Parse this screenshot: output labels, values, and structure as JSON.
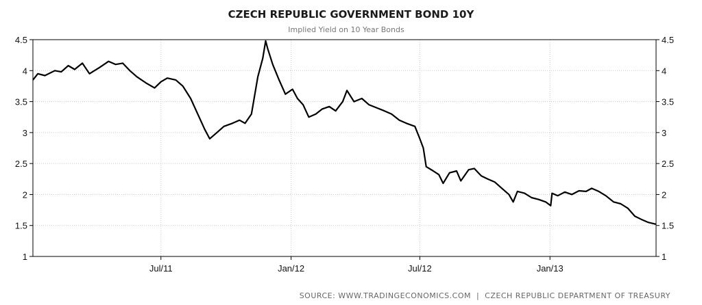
{
  "chart_data": {
    "type": "line",
    "title": "CZECH REPUBLIC GOVERNMENT BOND 10Y",
    "subtitle": "Implied Yield on 10 Year Bonds",
    "source": "SOURCE: WWW.TRADINGECONOMICS.COM  |  CZECH REPUBLIC DEPARTMENT OF TREASURY",
    "ylim": [
      1,
      4.5
    ],
    "y_ticks": [
      1,
      1.5,
      2,
      2.5,
      3,
      3.5,
      4,
      4.5
    ],
    "y_tick_labels": [
      "1",
      "1.5",
      "2",
      "2.5",
      "3",
      "3.5",
      "4",
      "4.5"
    ],
    "xlim": [
      "2011-01-01",
      "2013-05-31"
    ],
    "x_ticks": [
      "2011-07-01",
      "2012-01-01",
      "2012-07-01",
      "2013-01-01"
    ],
    "x_tick_labels": [
      "Jul/11",
      "Jan/12",
      "Jul/12",
      "Jan/13"
    ],
    "grid": true,
    "y_axis_both_sides": true,
    "series": [
      {
        "color": "#000000",
        "points": [
          [
            "2011-01-01",
            3.85
          ],
          [
            "2011-01-08",
            3.95
          ],
          [
            "2011-01-18",
            3.92
          ],
          [
            "2011-02-01",
            4.0
          ],
          [
            "2011-02-10",
            3.98
          ],
          [
            "2011-02-20",
            4.08
          ],
          [
            "2011-03-01",
            4.02
          ],
          [
            "2011-03-12",
            4.12
          ],
          [
            "2011-03-22",
            3.95
          ],
          [
            "2011-04-05",
            4.05
          ],
          [
            "2011-04-18",
            4.15
          ],
          [
            "2011-04-28",
            4.1
          ],
          [
            "2011-05-08",
            4.12
          ],
          [
            "2011-05-18",
            4.0
          ],
          [
            "2011-05-28",
            3.9
          ],
          [
            "2011-06-10",
            3.8
          ],
          [
            "2011-06-22",
            3.72
          ],
          [
            "2011-07-01",
            3.82
          ],
          [
            "2011-07-10",
            3.88
          ],
          [
            "2011-07-22",
            3.85
          ],
          [
            "2011-08-01",
            3.75
          ],
          [
            "2011-08-12",
            3.55
          ],
          [
            "2011-08-22",
            3.3
          ],
          [
            "2011-09-01",
            3.05
          ],
          [
            "2011-09-08",
            2.9
          ],
          [
            "2011-09-18",
            3.0
          ],
          [
            "2011-09-28",
            3.1
          ],
          [
            "2011-10-10",
            3.15
          ],
          [
            "2011-10-20",
            3.2
          ],
          [
            "2011-10-28",
            3.15
          ],
          [
            "2011-11-06",
            3.3
          ],
          [
            "2011-11-15",
            3.9
          ],
          [
            "2011-11-22",
            4.2
          ],
          [
            "2011-11-26",
            4.48
          ],
          [
            "2011-11-29",
            4.35
          ],
          [
            "2011-12-06",
            4.1
          ],
          [
            "2011-12-15",
            3.85
          ],
          [
            "2011-12-24",
            3.62
          ],
          [
            "2012-01-03",
            3.7
          ],
          [
            "2012-01-10",
            3.55
          ],
          [
            "2012-01-18",
            3.45
          ],
          [
            "2012-01-26",
            3.25
          ],
          [
            "2012-02-05",
            3.3
          ],
          [
            "2012-02-14",
            3.38
          ],
          [
            "2012-02-24",
            3.42
          ],
          [
            "2012-03-04",
            3.35
          ],
          [
            "2012-03-14",
            3.5
          ],
          [
            "2012-03-20",
            3.68
          ],
          [
            "2012-03-30",
            3.5
          ],
          [
            "2012-04-10",
            3.55
          ],
          [
            "2012-04-20",
            3.45
          ],
          [
            "2012-05-01",
            3.4
          ],
          [
            "2012-05-12",
            3.35
          ],
          [
            "2012-05-22",
            3.3
          ],
          [
            "2012-06-02",
            3.2
          ],
          [
            "2012-06-12",
            3.15
          ],
          [
            "2012-06-24",
            3.1
          ],
          [
            "2012-07-01",
            2.9
          ],
          [
            "2012-07-06",
            2.75
          ],
          [
            "2012-07-10",
            2.45
          ],
          [
            "2012-07-20",
            2.38
          ],
          [
            "2012-07-28",
            2.32
          ],
          [
            "2012-08-03",
            2.18
          ],
          [
            "2012-08-12",
            2.35
          ],
          [
            "2012-08-22",
            2.38
          ],
          [
            "2012-08-28",
            2.22
          ],
          [
            "2012-09-08",
            2.4
          ],
          [
            "2012-09-16",
            2.42
          ],
          [
            "2012-09-26",
            2.3
          ],
          [
            "2012-10-05",
            2.25
          ],
          [
            "2012-10-15",
            2.2
          ],
          [
            "2012-10-25",
            2.1
          ],
          [
            "2012-11-04",
            2.0
          ],
          [
            "2012-11-10",
            1.88
          ],
          [
            "2012-11-16",
            2.05
          ],
          [
            "2012-11-26",
            2.02
          ],
          [
            "2012-12-06",
            1.95
          ],
          [
            "2012-12-16",
            1.92
          ],
          [
            "2012-12-26",
            1.88
          ],
          [
            "2013-01-02",
            1.82
          ],
          [
            "2013-01-04",
            2.02
          ],
          [
            "2013-01-12",
            1.98
          ],
          [
            "2013-01-22",
            2.04
          ],
          [
            "2013-02-01",
            2.0
          ],
          [
            "2013-02-11",
            2.06
          ],
          [
            "2013-02-21",
            2.05
          ],
          [
            "2013-03-01",
            2.1
          ],
          [
            "2013-03-11",
            2.05
          ],
          [
            "2013-03-21",
            1.98
          ],
          [
            "2013-04-01",
            1.88
          ],
          [
            "2013-04-11",
            1.85
          ],
          [
            "2013-04-21",
            1.78
          ],
          [
            "2013-05-01",
            1.65
          ],
          [
            "2013-05-10",
            1.6
          ],
          [
            "2013-05-20",
            1.55
          ],
          [
            "2013-05-31",
            1.52
          ]
        ]
      }
    ]
  }
}
